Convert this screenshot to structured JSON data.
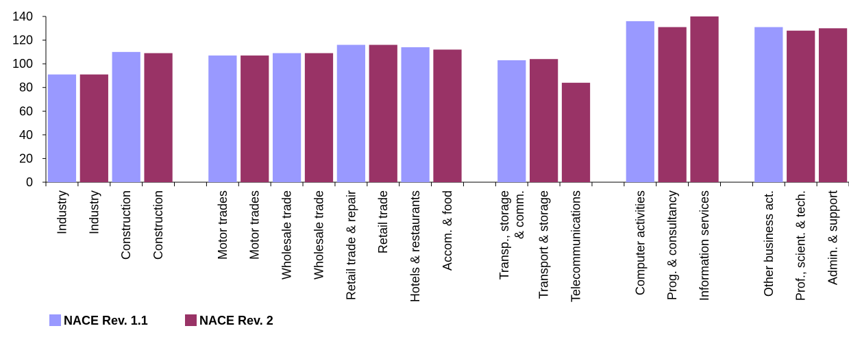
{
  "chart_data": {
    "type": "bar",
    "title": "",
    "xlabel": "",
    "ylabel": "",
    "ylim": [
      0,
      140
    ],
    "yticks": [
      0,
      20,
      40,
      60,
      80,
      100,
      120,
      140
    ],
    "grid": false,
    "legend_position": "bottom-left",
    "colors": {
      "NACE Rev. 1.1": "#9999ff",
      "NACE Rev. 2": "#993366"
    },
    "bars": [
      {
        "label": "Industry",
        "series": "NACE Rev. 1.1",
        "value": 91
      },
      {
        "label": "Industry",
        "series": "NACE Rev. 2",
        "value": 91
      },
      {
        "label": "Construction",
        "series": "NACE Rev. 1.1",
        "value": 110
      },
      {
        "label": "Construction",
        "series": "NACE Rev. 2",
        "value": 109
      },
      {
        "label": "",
        "series": null,
        "value": null
      },
      {
        "label": "Motor trades",
        "series": "NACE Rev. 1.1",
        "value": 107
      },
      {
        "label": "Motor trades",
        "series": "NACE Rev. 2",
        "value": 107
      },
      {
        "label": "Wholesale trade",
        "series": "NACE Rev. 1.1",
        "value": 109
      },
      {
        "label": "Wholesale trade",
        "series": "NACE Rev. 2",
        "value": 109
      },
      {
        "label": "Retail trade & repair",
        "series": "NACE Rev. 1.1",
        "value": 116
      },
      {
        "label": "Retail trade",
        "series": "NACE Rev. 2",
        "value": 116
      },
      {
        "label": "Hotels & restaurants",
        "series": "NACE Rev. 1.1",
        "value": 114
      },
      {
        "label": "Accom. & food",
        "series": "NACE Rev. 2",
        "value": 112
      },
      {
        "label": "",
        "series": null,
        "value": null
      },
      {
        "label": "Transp., storage\n& comm.",
        "series": "NACE Rev. 1.1",
        "value": 103
      },
      {
        "label": "Transport & storage",
        "series": "NACE Rev. 2",
        "value": 104
      },
      {
        "label": "Telecommunications",
        "series": "NACE Rev. 2",
        "value": 84
      },
      {
        "label": "",
        "series": null,
        "value": null
      },
      {
        "label": "Computer activities",
        "series": "NACE Rev. 1.1",
        "value": 136
      },
      {
        "label": "Prog. & consultancy",
        "series": "NACE Rev. 2",
        "value": 131
      },
      {
        "label": "Information services",
        "series": "NACE Rev. 2",
        "value": 140
      },
      {
        "label": "",
        "series": null,
        "value": null
      },
      {
        "label": "Other business act.",
        "series": "NACE Rev. 1.1",
        "value": 131
      },
      {
        "label": "Prof., scient. & tech.",
        "series": "NACE Rev. 2",
        "value": 128
      },
      {
        "label": "Admin. & support",
        "series": "NACE Rev. 2",
        "value": 130
      }
    ],
    "legend": [
      "NACE Rev. 1.1",
      "NACE Rev. 2"
    ]
  }
}
